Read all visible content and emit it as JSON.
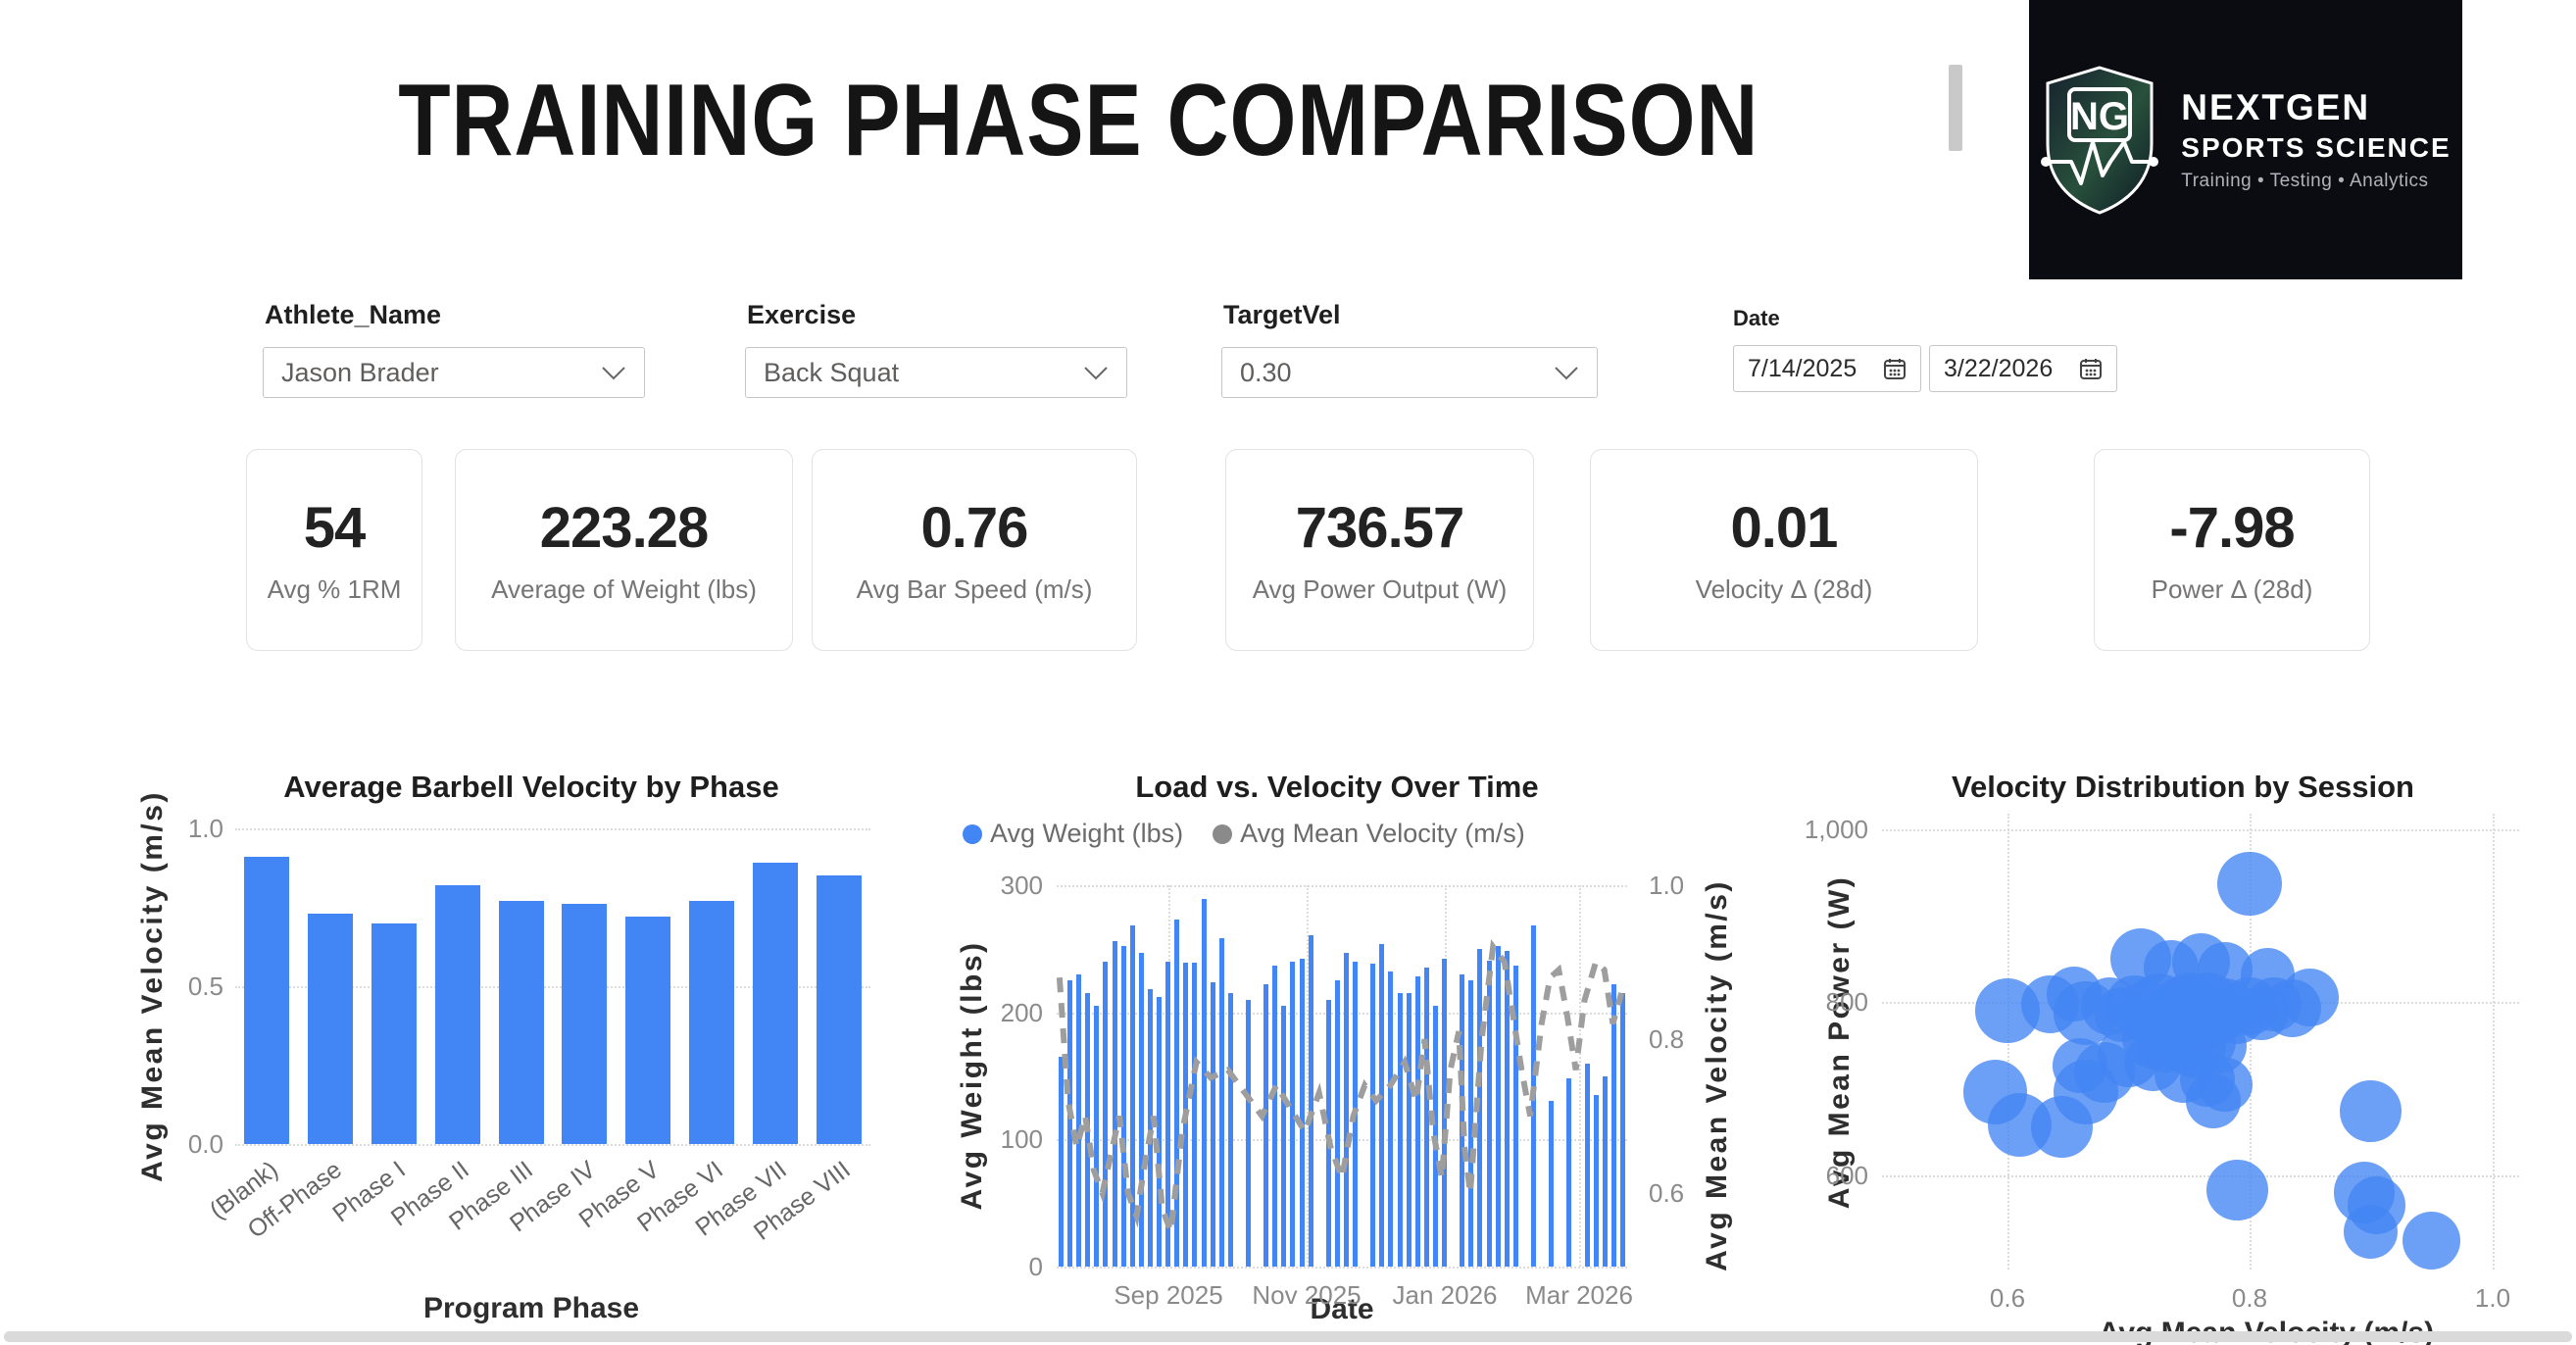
{
  "header": {
    "title": "TRAINING PHASE COMPARISON",
    "logo": {
      "monogram": "NG",
      "brand_line1": "NEXTGEN",
      "brand_line2": "SPORTS SCIENCE",
      "tagline": "Training • Testing • Analytics"
    }
  },
  "filters": {
    "athlete": {
      "label": "Athlete_Name",
      "value": "Jason Brader"
    },
    "exercise": {
      "label": "Exercise",
      "value": "Back Squat"
    },
    "targetvel": {
      "label": "TargetVel",
      "value": "0.30"
    },
    "date": {
      "label": "Date",
      "from": "7/14/2025",
      "to": "3/22/2026"
    }
  },
  "kpis": [
    {
      "value": "54",
      "label": "Avg % 1RM"
    },
    {
      "value": "223.28",
      "label": "Average of Weight (lbs)"
    },
    {
      "value": "0.76",
      "label": "Avg Bar Speed (m/s)"
    },
    {
      "value": "736.57",
      "label": "Avg Power Output (W)"
    },
    {
      "value": "0.01",
      "label": "Velocity Δ (28d)"
    },
    {
      "value": "-7.98",
      "label": "Power Δ (28d)"
    }
  ],
  "colors": {
    "bar_blue": "#4285F4",
    "line_gray": "#9E9E9E",
    "grid": "#DCDCDC",
    "logo_bg": "#0A0C11"
  },
  "chart_data": [
    {
      "type": "bar",
      "title": "Average Barbell Velocity by Phase",
      "xlabel": "Program Phase",
      "ylabel": "Avg Mean Velocity (m/s)",
      "ylim": [
        0,
        1.0
      ],
      "yticks": [
        "1.0",
        "0.5",
        "0.0"
      ],
      "grid": true,
      "categories": [
        "(Blank)",
        "Off-Phase",
        "Phase I",
        "Phase II",
        "Phase III",
        "Phase IV",
        "Phase V",
        "Phase VI",
        "Phase VII",
        "Phase VIII"
      ],
      "values": [
        0.91,
        0.73,
        0.7,
        0.82,
        0.77,
        0.76,
        0.72,
        0.77,
        0.89,
        0.85
      ]
    },
    {
      "type": "combo-column-line",
      "title": "Load vs. Velocity Over Time",
      "xlabel": "Date",
      "ylabel_left": "Avg Weight (lbs)",
      "ylabel_right": "Avg Mean Velocity (m/s)",
      "legend": [
        {
          "name": "Avg Weight (lbs)",
          "color": "#4285F4"
        },
        {
          "name": "Avg Mean Velocity (m/s)",
          "color": "#8A8A8A"
        }
      ],
      "ylim_left": [
        0,
        300
      ],
      "ylim_right": [
        0.5,
        1.0
      ],
      "yticks_left": [
        "300",
        "200",
        "100",
        "0"
      ],
      "yticks_right": [
        "1.0",
        "0.8",
        "0.6"
      ],
      "x_ticklabels": [
        "Sep 2025",
        "Nov 2025",
        "Jan 2026",
        "Mar 2026"
      ],
      "bar_values_lbs": [
        165,
        225,
        230,
        215,
        205,
        240,
        256,
        252,
        268,
        247,
        218,
        212,
        240,
        273,
        239,
        239,
        289,
        224,
        258,
        215,
        null,
        210,
        null,
        222,
        237,
        205,
        240,
        242,
        261,
        null,
        210,
        225,
        247,
        240,
        null,
        238,
        254,
        232,
        215,
        215,
        228,
        235,
        205,
        242,
        null,
        230,
        225,
        250,
        241,
        252,
        248,
        237,
        null,
        268,
        null,
        130,
        null,
        148,
        null,
        160,
        135,
        150,
        222,
        215
      ],
      "line_points_frac_vel": [
        [
          0.005,
          0.88
        ],
        [
          0.02,
          0.72
        ],
        [
          0.035,
          0.66
        ],
        [
          0.05,
          0.7
        ],
        [
          0.065,
          0.63
        ],
        [
          0.08,
          0.6
        ],
        [
          0.095,
          0.65
        ],
        [
          0.11,
          0.7
        ],
        [
          0.125,
          0.6
        ],
        [
          0.14,
          0.57
        ],
        [
          0.155,
          0.64
        ],
        [
          0.17,
          0.7
        ],
        [
          0.185,
          0.58
        ],
        [
          0.2,
          0.55
        ],
        [
          0.22,
          0.68
        ],
        [
          0.245,
          0.77
        ],
        [
          0.27,
          0.75
        ],
        [
          0.3,
          0.76
        ],
        [
          0.33,
          0.73
        ],
        [
          0.36,
          0.7
        ],
        [
          0.385,
          0.74
        ],
        [
          0.41,
          0.71
        ],
        [
          0.435,
          0.68
        ],
        [
          0.46,
          0.73
        ],
        [
          0.48,
          0.66
        ],
        [
          0.5,
          0.62
        ],
        [
          0.52,
          0.7
        ],
        [
          0.54,
          0.74
        ],
        [
          0.56,
          0.72
        ],
        [
          0.585,
          0.74
        ],
        [
          0.61,
          0.77
        ],
        [
          0.63,
          0.72
        ],
        [
          0.645,
          0.8
        ],
        [
          0.66,
          0.68
        ],
        [
          0.675,
          0.62
        ],
        [
          0.69,
          0.76
        ],
        [
          0.705,
          0.81
        ],
        [
          0.715,
          0.66
        ],
        [
          0.725,
          0.6
        ],
        [
          0.745,
          0.8
        ],
        [
          0.765,
          0.92
        ],
        [
          0.785,
          0.9
        ],
        [
          0.8,
          0.83
        ],
        [
          0.815,
          0.76
        ],
        [
          0.83,
          0.7
        ],
        [
          0.85,
          0.82
        ],
        [
          0.865,
          0.88
        ],
        [
          0.88,
          0.89
        ],
        [
          0.895,
          0.83
        ],
        [
          0.91,
          0.76
        ],
        [
          0.925,
          0.85
        ],
        [
          0.945,
          0.9
        ],
        [
          0.96,
          0.89
        ],
        [
          0.975,
          0.82
        ],
        [
          0.99,
          0.86
        ]
      ]
    },
    {
      "type": "scatter",
      "title": "Velocity Distribution by Session",
      "xlabel": "Avg Mean Velocity (m/s)",
      "ylabel": "Avg Mean Power (W)",
      "xlim": [
        0.52,
        1.02
      ],
      "ylim": [
        490,
        1030
      ],
      "xticks": [
        "0.6",
        "0.8",
        "1.0"
      ],
      "yticks": [
        "1,000",
        "800",
        "600"
      ],
      "points_vel_watt_r": [
        [
          0.8,
          938,
          40
        ],
        [
          0.71,
          852,
          38
        ],
        [
          0.76,
          848,
          36
        ],
        [
          0.735,
          842,
          34
        ],
        [
          0.78,
          840,
          34
        ],
        [
          0.815,
          833,
          34
        ],
        [
          0.6,
          793,
          40
        ],
        [
          0.635,
          800,
          36
        ],
        [
          0.655,
          812,
          34
        ],
        [
          0.665,
          790,
          40
        ],
        [
          0.685,
          798,
          36
        ],
        [
          0.695,
          788,
          34
        ],
        [
          0.705,
          800,
          36
        ],
        [
          0.715,
          792,
          38
        ],
        [
          0.725,
          798,
          40
        ],
        [
          0.735,
          788,
          36
        ],
        [
          0.745,
          795,
          40
        ],
        [
          0.75,
          803,
          36
        ],
        [
          0.755,
          790,
          38
        ],
        [
          0.765,
          800,
          40
        ],
        [
          0.77,
          786,
          36
        ],
        [
          0.78,
          795,
          38
        ],
        [
          0.79,
          788,
          36
        ],
        [
          0.8,
          798,
          36
        ],
        [
          0.81,
          790,
          34
        ],
        [
          0.82,
          800,
          34
        ],
        [
          0.835,
          795,
          36
        ],
        [
          0.85,
          808,
          36
        ],
        [
          0.72,
          762,
          38
        ],
        [
          0.73,
          755,
          36
        ],
        [
          0.745,
          760,
          40
        ],
        [
          0.755,
          750,
          38
        ],
        [
          0.765,
          757,
          36
        ],
        [
          0.775,
          752,
          34
        ],
        [
          0.7,
          740,
          38
        ],
        [
          0.72,
          734,
          36
        ],
        [
          0.68,
          722,
          38
        ],
        [
          0.66,
          730,
          34
        ],
        [
          0.745,
          720,
          36
        ],
        [
          0.765,
          714,
          34
        ],
        [
          0.78,
          708,
          34
        ],
        [
          0.665,
          700,
          40
        ],
        [
          0.59,
          700,
          40
        ],
        [
          0.61,
          662,
          40
        ],
        [
          0.645,
          660,
          38
        ],
        [
          0.77,
          690,
          34
        ],
        [
          0.79,
          588,
          38
        ],
        [
          0.9,
          678,
          38
        ],
        [
          0.895,
          585,
          38
        ],
        [
          0.905,
          570,
          36
        ],
        [
          0.9,
          540,
          34
        ],
        [
          0.95,
          530,
          36
        ]
      ]
    }
  ]
}
